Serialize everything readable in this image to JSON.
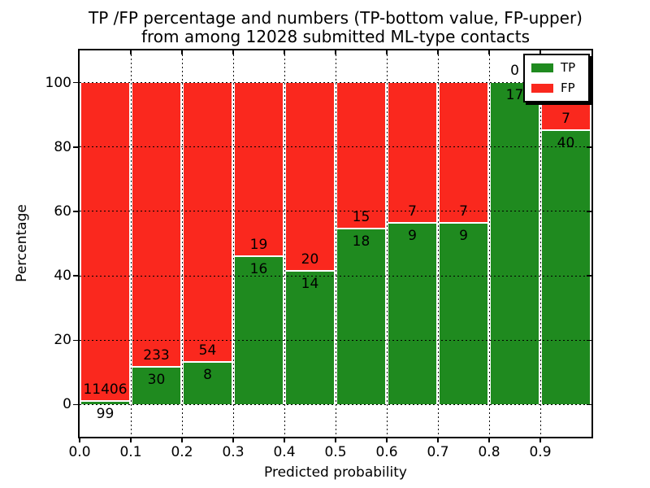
{
  "chart_data": {
    "type": "bar",
    "variant": "stacked-percentage-histogram",
    "title_line1": "TP /FP percentage and numbers (TP-bottom value, FP-upper)",
    "title_line2": "from among 12028 submitted ML-type contacts",
    "total_contacts": 12028,
    "xlabel": "Predicted probability",
    "ylabel": "Percentage",
    "xlim": [
      0.0,
      1.0
    ],
    "ylim": [
      -10,
      110
    ],
    "x_tick_labels": [
      "0.0",
      "0.1",
      "0.2",
      "0.3",
      "0.4",
      "0.5",
      "0.6",
      "0.7",
      "0.8",
      "0.9"
    ],
    "y_tick_values": [
      0,
      20,
      40,
      60,
      80,
      100
    ],
    "grid": {
      "style": "dotted",
      "color": "#000000",
      "on_top": true
    },
    "series": [
      {
        "name": "TP",
        "position": "bottom",
        "color": "#1f8a1f"
      },
      {
        "name": "FP",
        "position": "top",
        "color": "#fa281e"
      }
    ],
    "bins": [
      {
        "x_start": 0.0,
        "x_end": 0.1,
        "tp": 99,
        "fp": 11406
      },
      {
        "x_start": 0.1,
        "x_end": 0.2,
        "tp": 30,
        "fp": 233
      },
      {
        "x_start": 0.2,
        "x_end": 0.3,
        "tp": 8,
        "fp": 54
      },
      {
        "x_start": 0.3,
        "x_end": 0.4,
        "tp": 16,
        "fp": 19
      },
      {
        "x_start": 0.4,
        "x_end": 0.5,
        "tp": 14,
        "fp": 20
      },
      {
        "x_start": 0.5,
        "x_end": 0.6,
        "tp": 18,
        "fp": 15
      },
      {
        "x_start": 0.6,
        "x_end": 0.7,
        "tp": 9,
        "fp": 7
      },
      {
        "x_start": 0.7,
        "x_end": 0.8,
        "tp": 9,
        "fp": 7
      },
      {
        "x_start": 0.8,
        "x_end": 0.9,
        "tp": 17,
        "fp": 0
      },
      {
        "x_start": 0.9,
        "x_end": 1.0,
        "tp": 40,
        "fp": 7
      }
    ],
    "legend": {
      "position": "upper-right",
      "entries": [
        {
          "label": "TP"
        },
        {
          "label": "FP"
        }
      ]
    }
  }
}
